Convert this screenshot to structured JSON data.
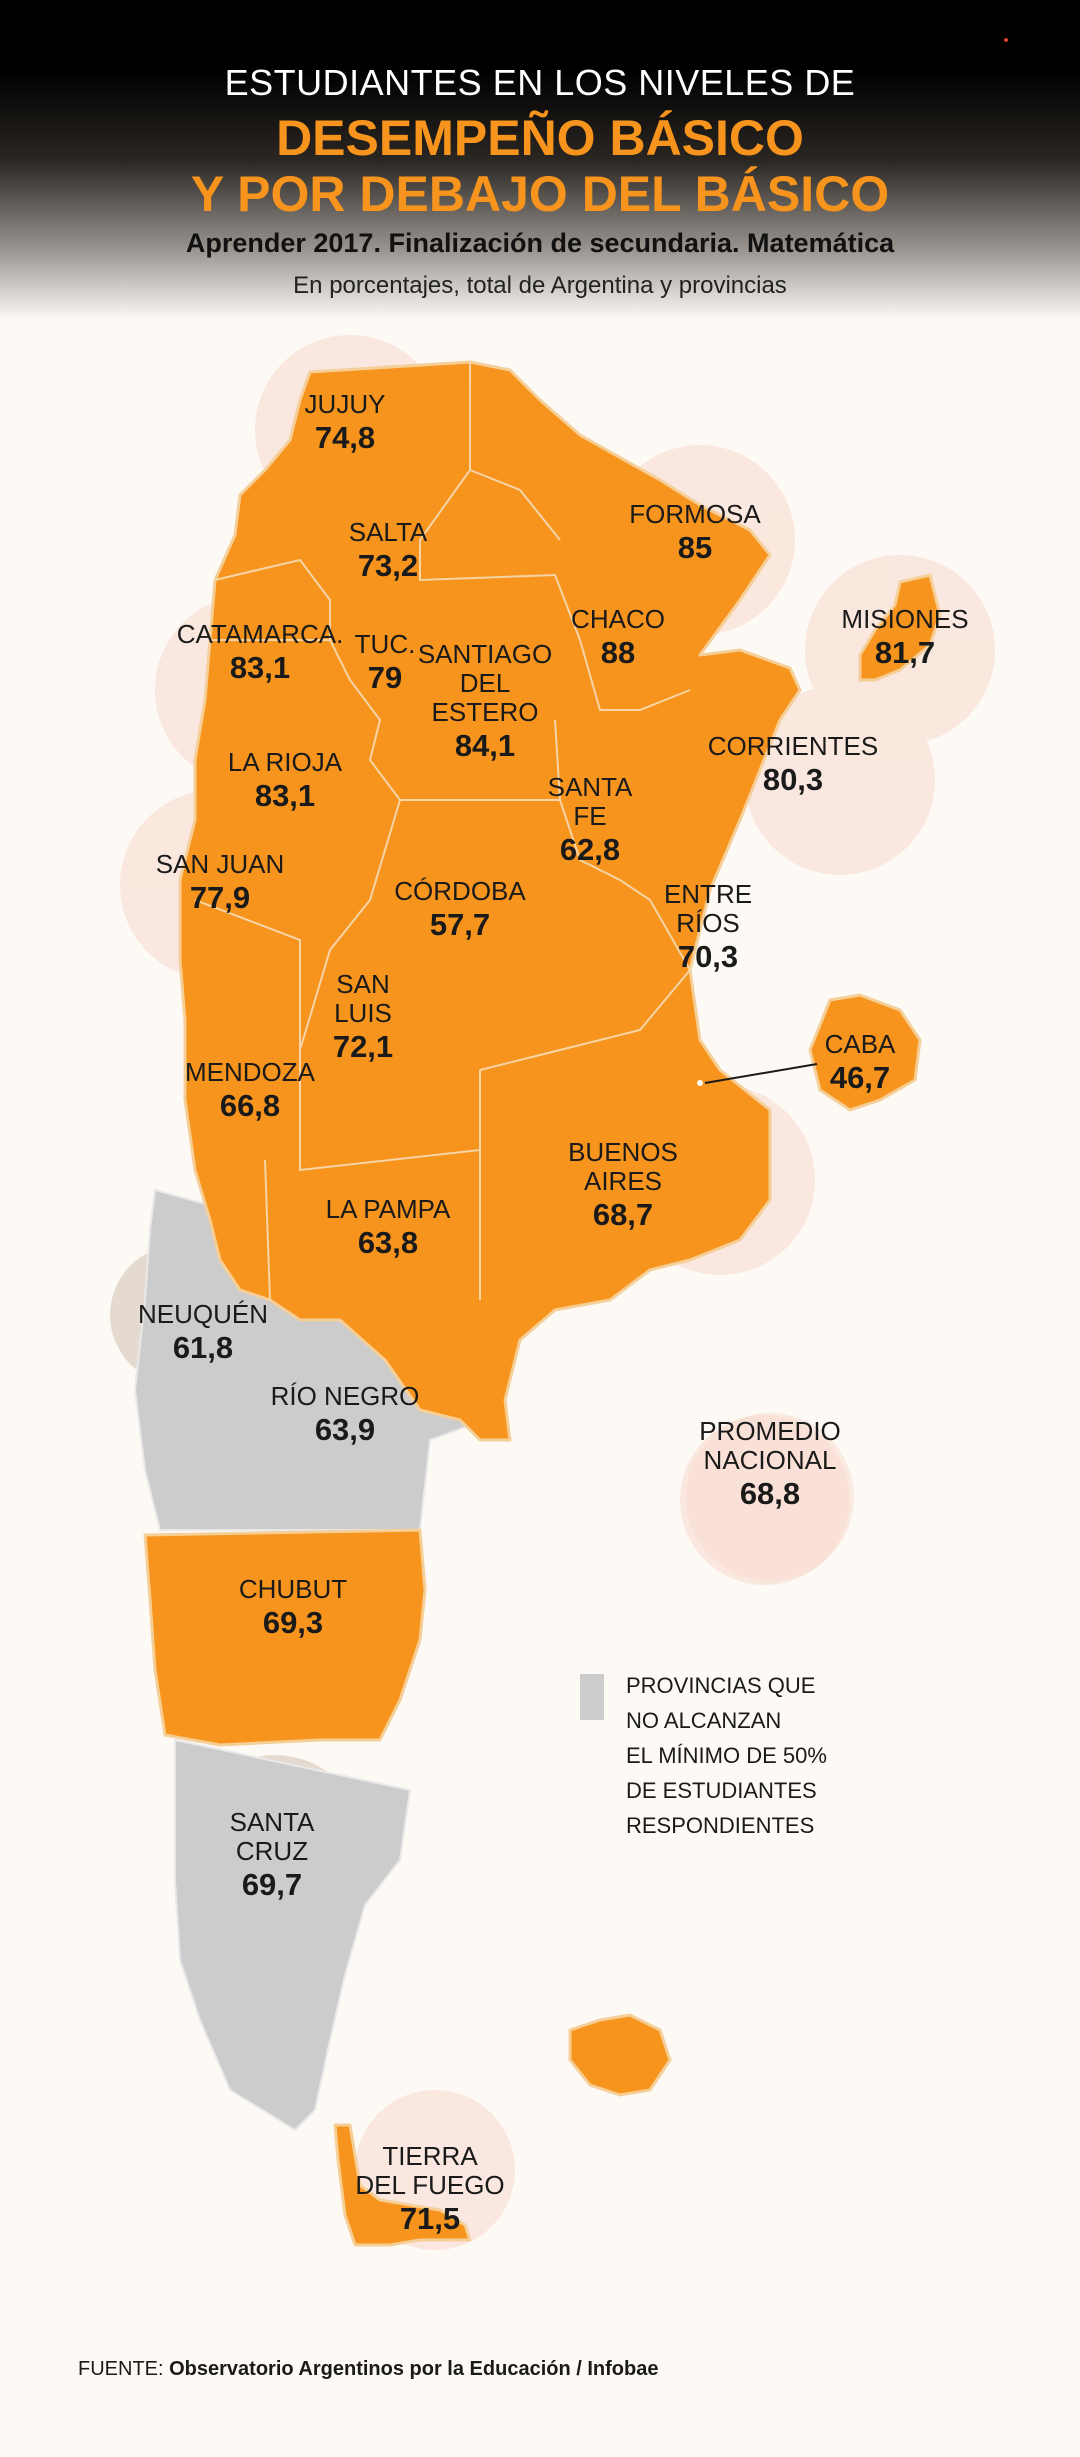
{
  "header": {
    "line1": "ESTUDIANTES EN LOS NIVELES DE",
    "line2": "DESEMPEÑO BÁSICO",
    "line3": "Y POR DEBAJO DEL BÁSICO",
    "subtitle": "Aprender 2017. Finalización de secundaria. Matemática",
    "units": "En porcentajes, total de Argentina y provincias"
  },
  "colors": {
    "highlight": "#f7941d",
    "no_data": "#cccccc",
    "bubble": "#f3b8a6",
    "title_orange": "#f7941d"
  },
  "provinces": {
    "jujuy": {
      "name": "JUJUY",
      "value": "74,8"
    },
    "salta": {
      "name": "SALTA",
      "value": "73,2"
    },
    "formosa": {
      "name": "FORMOSA",
      "value": "85"
    },
    "misiones": {
      "name": "MISIONES",
      "value": "81,7"
    },
    "catamarca": {
      "name": "CATAMARCA.",
      "value": "83,1"
    },
    "tucuman": {
      "name": "TUC.",
      "value": "79"
    },
    "santiago_line1": "SANTIAGO",
    "santiago_line2": "DEL",
    "santiago_line3": "ESTERO",
    "santiago_value": "84,1",
    "chaco": {
      "name": "CHACO",
      "value": "88"
    },
    "corrientes": {
      "name": "CORRIENTES",
      "value": "80,3"
    },
    "la_rioja": {
      "name": "LA RIOJA",
      "value": "83,1"
    },
    "santa_fe_line1": "SANTA",
    "santa_fe_line2": "FE",
    "santa_fe_value": "62,8",
    "san_juan": {
      "name": "SAN JUAN",
      "value": "77,9"
    },
    "cordoba": {
      "name": "CÓRDOBA",
      "value": "57,7"
    },
    "entre_rios_line1": "ENTRE",
    "entre_rios_line2": "RÍOS",
    "entre_rios_value": "70,3",
    "san_luis_line1": "SAN",
    "san_luis_line2": "LUIS",
    "san_luis_value": "72,1",
    "caba": {
      "name": "CABA",
      "value": "46,7"
    },
    "mendoza": {
      "name": "MENDOZA",
      "value": "66,8"
    },
    "buenos_aires_line1": "BUENOS",
    "buenos_aires_line2": "AIRES",
    "buenos_aires_value": "68,7",
    "la_pampa": {
      "name": "LA PAMPA",
      "value": "63,8"
    },
    "neuquen": {
      "name": "NEUQUÉN",
      "value": "61,8"
    },
    "rio_negro": {
      "name": "RÍO NEGRO",
      "value": "63,9"
    },
    "chubut": {
      "name": "CHUBUT",
      "value": "69,3"
    },
    "santa_cruz_line1": "SANTA",
    "santa_cruz_line2": "CRUZ",
    "santa_cruz_value": "69,7",
    "tierra_line1": "TIERRA",
    "tierra_line2": "DEL FUEGO",
    "tierra_value": "71,5"
  },
  "national": {
    "line1": "PROMEDIO",
    "line2": "NACIONAL",
    "value": "68,8"
  },
  "legend": {
    "line1": "PROVINCIAS QUE",
    "line2": "NO ALCANZAN",
    "line3": "EL MÍNIMO DE 50%",
    "line4": "DE ESTUDIANTES",
    "line5": "RESPONDIENTES"
  },
  "source": {
    "prefix": "FUENTE:",
    "text": "Observatorio Argentinos por la Educación / Infobae"
  }
}
